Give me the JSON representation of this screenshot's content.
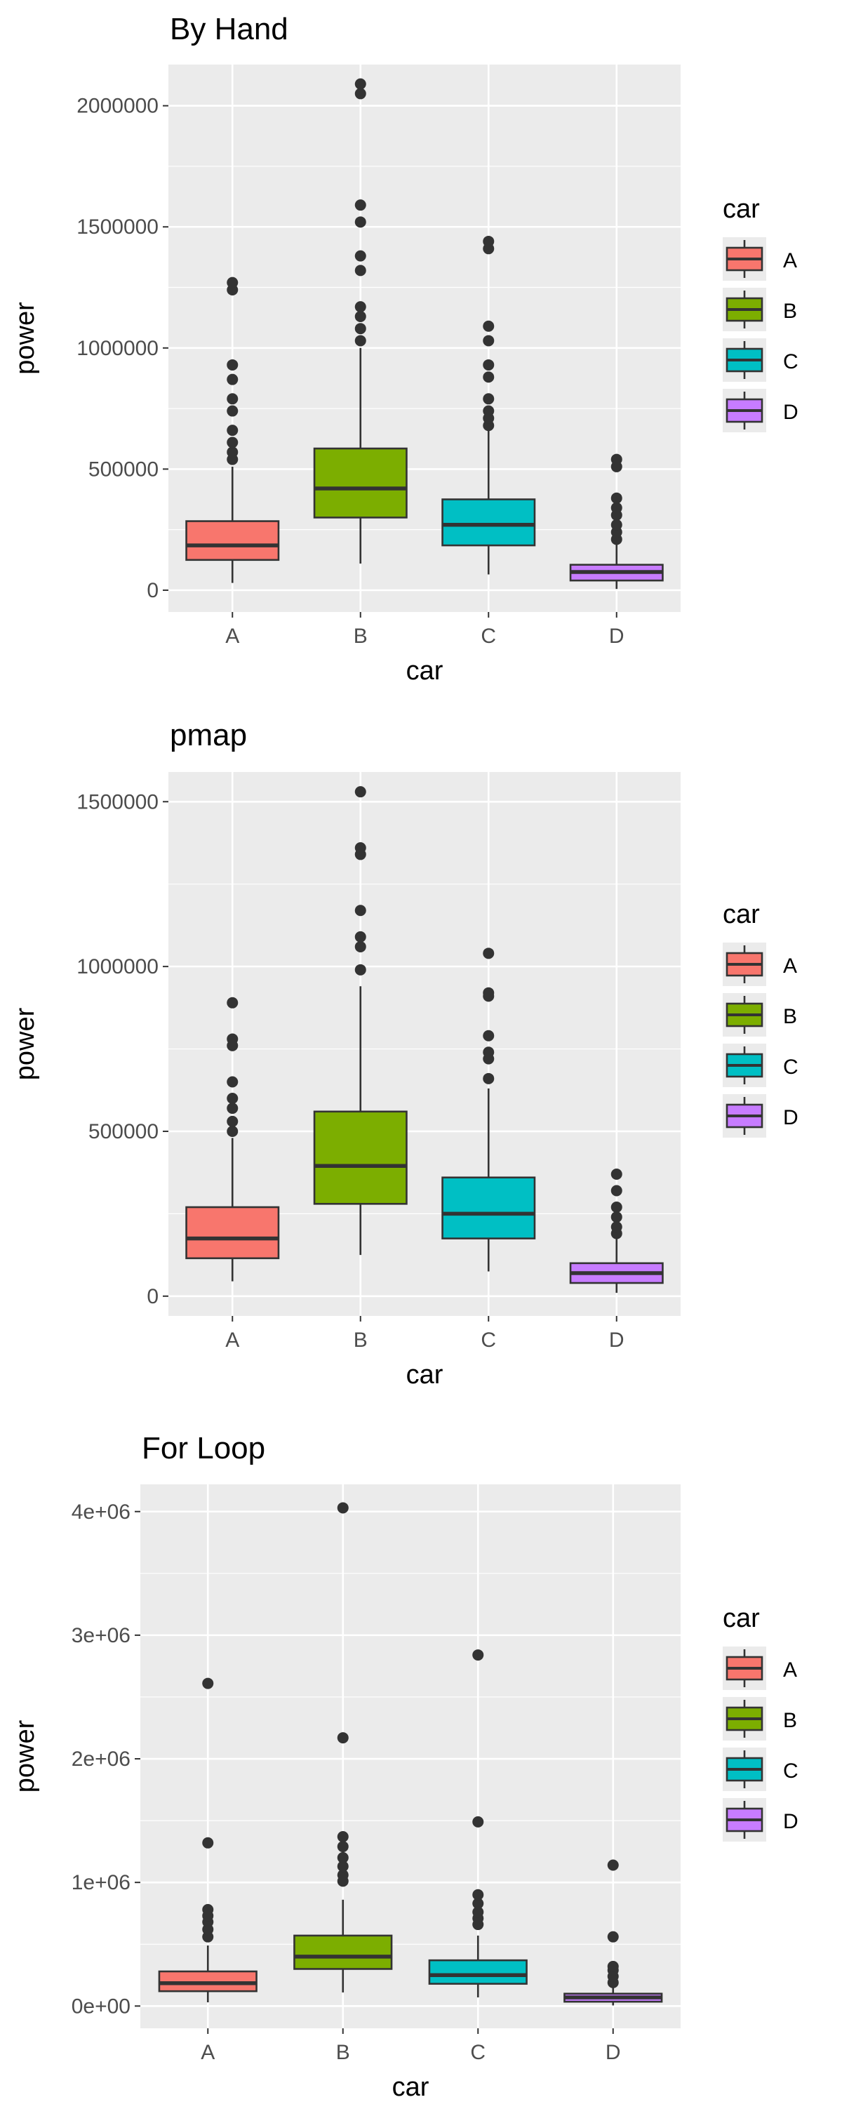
{
  "chart_data": [
    {
      "type": "box",
      "title": "By Hand",
      "xlabel": "car",
      "ylabel": "power",
      "categories": [
        "A",
        "B",
        "C",
        "D"
      ],
      "yticks": [
        0,
        500000,
        1000000,
        1500000,
        2000000
      ],
      "ytick_labels": [
        "0",
        "500000",
        "1000000",
        "1500000",
        "2000000"
      ],
      "ylim": [
        -90000,
        2170000
      ],
      "grid": true,
      "legend": {
        "title": "car",
        "placement": "right",
        "entries": [
          "A",
          "B",
          "C",
          "D"
        ]
      },
      "boxes": [
        {
          "category": "A",
          "whisker_low": 30000,
          "q1": 125000,
          "median": 185000,
          "q3": 285000,
          "whisker_high": 510000,
          "outliers": [
            540000,
            570000,
            610000,
            660000,
            740000,
            790000,
            870000,
            930000,
            1240000,
            1270000
          ]
        },
        {
          "category": "B",
          "whisker_low": 110000,
          "q1": 300000,
          "median": 420000,
          "q3": 585000,
          "whisker_high": 1000000,
          "outliers": [
            1030000,
            1080000,
            1130000,
            1170000,
            1320000,
            1380000,
            1520000,
            1590000,
            2050000,
            2090000
          ]
        },
        {
          "category": "C",
          "whisker_low": 65000,
          "q1": 185000,
          "median": 270000,
          "q3": 375000,
          "whisker_high": 660000,
          "outliers": [
            680000,
            710000,
            740000,
            790000,
            880000,
            930000,
            1030000,
            1090000,
            1410000,
            1440000
          ]
        },
        {
          "category": "D",
          "whisker_low": 5000,
          "q1": 40000,
          "median": 75000,
          "q3": 105000,
          "whisker_high": 195000,
          "outliers": [
            210000,
            240000,
            270000,
            310000,
            340000,
            380000,
            510000,
            540000
          ]
        }
      ]
    },
    {
      "type": "box",
      "title": "pmap",
      "xlabel": "car",
      "ylabel": "power",
      "categories": [
        "A",
        "B",
        "C",
        "D"
      ],
      "yticks": [
        0,
        500000,
        1000000,
        1500000
      ],
      "ytick_labels": [
        "0",
        "500000",
        "1000000",
        "1500000"
      ],
      "ylim": [
        -60000,
        1590000
      ],
      "grid": true,
      "legend": {
        "title": "car",
        "placement": "right",
        "entries": [
          "A",
          "B",
          "C",
          "D"
        ]
      },
      "boxes": [
        {
          "category": "A",
          "whisker_low": 45000,
          "q1": 115000,
          "median": 175000,
          "q3": 270000,
          "whisker_high": 480000,
          "outliers": [
            500000,
            530000,
            570000,
            600000,
            650000,
            760000,
            780000,
            890000
          ]
        },
        {
          "category": "B",
          "whisker_low": 125000,
          "q1": 280000,
          "median": 395000,
          "q3": 560000,
          "whisker_high": 940000,
          "outliers": [
            990000,
            1060000,
            1090000,
            1170000,
            1340000,
            1360000,
            1530000
          ]
        },
        {
          "category": "C",
          "whisker_low": 75000,
          "q1": 175000,
          "median": 250000,
          "q3": 360000,
          "whisker_high": 630000,
          "outliers": [
            660000,
            720000,
            740000,
            790000,
            910000,
            920000,
            1040000
          ]
        },
        {
          "category": "D",
          "whisker_low": 10000,
          "q1": 40000,
          "median": 70000,
          "q3": 100000,
          "whisker_high": 175000,
          "outliers": [
            190000,
            210000,
            240000,
            270000,
            320000,
            370000
          ]
        }
      ]
    },
    {
      "type": "box",
      "title": "For Loop",
      "xlabel": "car",
      "ylabel": "power",
      "categories": [
        "A",
        "B",
        "C",
        "D"
      ],
      "yticks": [
        0,
        1000000,
        2000000,
        3000000,
        4000000
      ],
      "ytick_labels": [
        "0e+00",
        "1e+06",
        "2e+06",
        "3e+06",
        "4e+06"
      ],
      "ylim": [
        -180000,
        4220000
      ],
      "grid": true,
      "legend": {
        "title": "car",
        "placement": "right",
        "entries": [
          "A",
          "B",
          "C",
          "D"
        ]
      },
      "boxes": [
        {
          "category": "A",
          "whisker_low": 30000,
          "q1": 120000,
          "median": 185000,
          "q3": 280000,
          "whisker_high": 490000,
          "outliers": [
            560000,
            620000,
            680000,
            730000,
            780000,
            1320000,
            2610000
          ]
        },
        {
          "category": "B",
          "whisker_low": 110000,
          "q1": 300000,
          "median": 400000,
          "q3": 570000,
          "whisker_high": 860000,
          "outliers": [
            1010000,
            1060000,
            1130000,
            1200000,
            1290000,
            1370000,
            2170000,
            4030000
          ]
        },
        {
          "category": "C",
          "whisker_low": 70000,
          "q1": 180000,
          "median": 250000,
          "q3": 370000,
          "whisker_high": 570000,
          "outliers": [
            660000,
            710000,
            760000,
            830000,
            900000,
            1490000,
            2840000
          ]
        },
        {
          "category": "D",
          "whisker_low": 5000,
          "q1": 35000,
          "median": 70000,
          "q3": 100000,
          "whisker_high": 170000,
          "outliers": [
            190000,
            240000,
            290000,
            320000,
            560000,
            1140000
          ]
        }
      ]
    }
  ],
  "fill_colors": {
    "A": "#F8766D",
    "B": "#7CAE00",
    "C": "#00BFC4",
    "D": "#C77CFF"
  },
  "theme": {
    "panel": "#EBEBEB",
    "grid": "#FFFFFF",
    "axis_text": "#4D4D4D",
    "outline": "#333333",
    "outlier": "#333333"
  }
}
